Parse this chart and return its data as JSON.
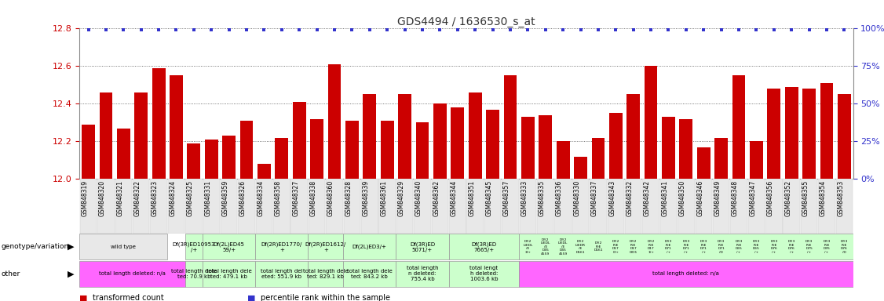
{
  "title": "GDS4494 / 1636530_s_at",
  "samples": [
    "GSM848319",
    "GSM848320",
    "GSM848321",
    "GSM848322",
    "GSM848323",
    "GSM848324",
    "GSM848325",
    "GSM848331",
    "GSM848359",
    "GSM848326",
    "GSM848334",
    "GSM848358",
    "GSM848327",
    "GSM848338",
    "GSM848360",
    "GSM848328",
    "GSM848339",
    "GSM848361",
    "GSM848329",
    "GSM848340",
    "GSM848362",
    "GSM848344",
    "GSM848351",
    "GSM848345",
    "GSM848357",
    "GSM848333",
    "GSM848335",
    "GSM848336",
    "GSM848330",
    "GSM848337",
    "GSM848343",
    "GSM848332",
    "GSM848342",
    "GSM848341",
    "GSM848350",
    "GSM848346",
    "GSM848349",
    "GSM848348",
    "GSM848347",
    "GSM848356",
    "GSM848352",
    "GSM848355",
    "GSM848354",
    "GSM848353"
  ],
  "bar_values": [
    12.29,
    12.46,
    12.27,
    12.46,
    12.59,
    12.55,
    12.19,
    12.21,
    12.23,
    12.31,
    12.08,
    12.22,
    12.41,
    12.32,
    12.61,
    12.31,
    12.45,
    12.31,
    12.45,
    12.3,
    12.4,
    12.38,
    12.46,
    12.37,
    12.55,
    12.33,
    12.34,
    12.2,
    12.12,
    12.22,
    12.35,
    12.45,
    12.6,
    12.33,
    12.32,
    12.17,
    12.22,
    12.55,
    12.2,
    12.48,
    12.49,
    12.48,
    12.51,
    12.45
  ],
  "ymin": 12.0,
  "ymax": 12.8,
  "yticks": [
    12.0,
    12.2,
    12.4,
    12.6,
    12.8
  ],
  "right_yticks": [
    0,
    25,
    50,
    75,
    100
  ],
  "bar_color": "#cc0000",
  "percentile_color": "#3333cc",
  "title_color": "#333333",
  "left_axis_color": "#cc0000",
  "right_axis_color": "#3333cc",
  "grid_color": "#555555",
  "geno_labels": [
    {
      "start": 0,
      "end": 5,
      "color": "#e8e8e8",
      "label": "wild type"
    },
    {
      "start": 6,
      "end": 7,
      "color": "#ccffcc",
      "label": "Df(3R)ED10953\n/+"
    },
    {
      "start": 7,
      "end": 10,
      "color": "#ccffcc",
      "label": "Df(2L)ED45\n59/+"
    },
    {
      "start": 10,
      "end": 13,
      "color": "#ccffcc",
      "label": "Df(2R)ED1770/\n+"
    },
    {
      "start": 13,
      "end": 15,
      "color": "#ccffcc",
      "label": "Df(2R)ED1612/\n+"
    },
    {
      "start": 15,
      "end": 18,
      "color": "#ccffcc",
      "label": "Df(2L)ED3/+"
    },
    {
      "start": 18,
      "end": 21,
      "color": "#ccffcc",
      "label": "Df(3R)ED\n5071/+"
    },
    {
      "start": 21,
      "end": 25,
      "color": "#ccffcc",
      "label": "Df(3R)ED\n7665/+"
    },
    {
      "start": 25,
      "end": 44,
      "color": "#ccffcc",
      "label": ""
    }
  ],
  "other_labels": [
    {
      "start": 0,
      "end": 6,
      "color": "#ff66ff",
      "label": "total length deleted: n/a"
    },
    {
      "start": 6,
      "end": 7,
      "color": "#ccffcc",
      "label": "total length dele\nted: 70.9 kb"
    },
    {
      "start": 7,
      "end": 10,
      "color": "#ccffcc",
      "label": "total length dele\nted: 479.1 kb"
    },
    {
      "start": 10,
      "end": 13,
      "color": "#ccffcc",
      "label": "total length del\neted: 551.9 kb"
    },
    {
      "start": 13,
      "end": 15,
      "color": "#ccffcc",
      "label": "total length dele\nted: 829.1 kb"
    },
    {
      "start": 15,
      "end": 18,
      "color": "#ccffcc",
      "label": "total length dele\nted: 843.2 kb"
    },
    {
      "start": 18,
      "end": 21,
      "color": "#ccffcc",
      "label": "total length\nn deleted:\n755.4 kb"
    },
    {
      "start": 21,
      "end": 25,
      "color": "#ccffcc",
      "label": "total lengt\nh deleted:\n1003.6 kb"
    },
    {
      "start": 25,
      "end": 44,
      "color": "#ff66ff",
      "label": "total length deleted: n/a"
    }
  ],
  "small_geno": [
    {
      "idx": 25,
      "label": "Df(2\nL)EDL\n/E\n3/+"
    },
    {
      "idx": 26,
      "label": "Df(2\nL)EDL\n/E\nD45\n4559"
    },
    {
      "idx": 27,
      "label": "Df(2\nL)EDL\n/E\nD45\n4559"
    },
    {
      "idx": 28,
      "label": "Df(2\nL)EDR\n/E\nD161"
    },
    {
      "idx": 29,
      "label": "Df(2\nR)E\nD161"
    },
    {
      "idx": 30,
      "label": "Df(2\nR)E\nD17\n0/+"
    },
    {
      "idx": 31,
      "label": "Df(2\nR)E\nD17\n0/D1"
    },
    {
      "idx": 32,
      "label": "Df(2\nR)E\nD17\n1/+"
    },
    {
      "idx": 33,
      "label": "Df(3\nR)E\nD71\n/+"
    },
    {
      "idx": 34,
      "label": "Df(3\nR)E\nD71\n/+"
    },
    {
      "idx": 35,
      "label": "Df(3\nR)E\nD71\n/+"
    },
    {
      "idx": 36,
      "label": "Df(3\nR)E\nD71\n/D"
    },
    {
      "idx": 37,
      "label": "Df(3\nR)E\nD65\n/+"
    },
    {
      "idx": 38,
      "label": "Df(3\nR)E\nD65\n/+"
    },
    {
      "idx": 39,
      "label": "Df(3\nR)E\nD76\n/+"
    },
    {
      "idx": 40,
      "label": "Df(3\nR)E\nD76\n/+"
    },
    {
      "idx": 41,
      "label": "Df(3\nR)E\nD75\n/+"
    },
    {
      "idx": 42,
      "label": "Df(3\nR)E\nD76\n/+"
    },
    {
      "idx": 43,
      "label": "Df(3\nR)E\nD76\n/D"
    }
  ]
}
